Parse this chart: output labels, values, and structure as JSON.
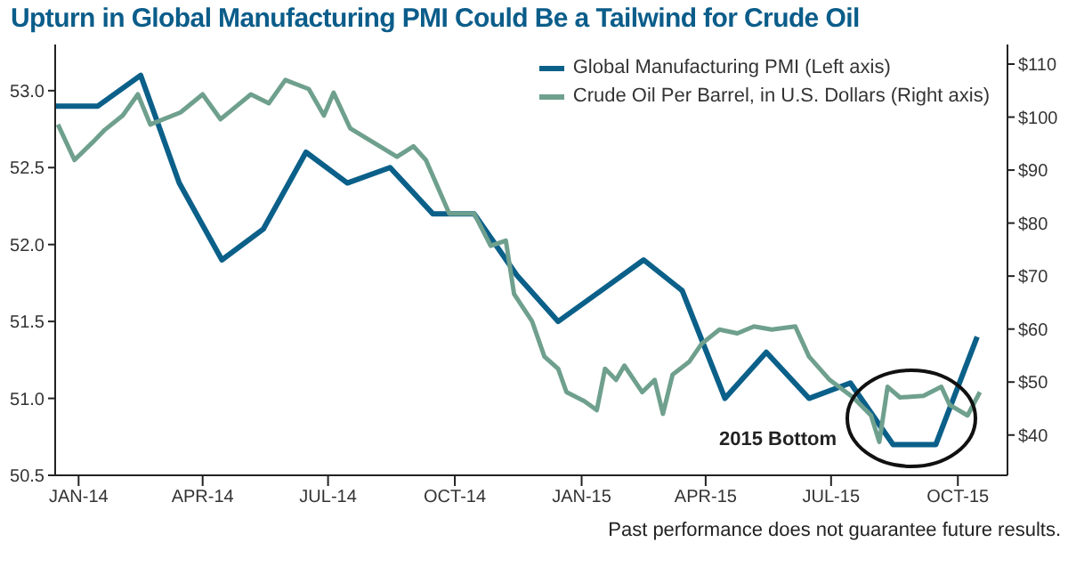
{
  "chart_data": {
    "type": "line",
    "title": "Upturn in Global Manufacturing PMI Could Be a Tailwind for Crude Oil",
    "series": [
      {
        "name": "Global Manufacturing PMI (Left axis)",
        "color": "#0b6089",
        "x": [
          "2013-12-15",
          "2014-01-15",
          "2014-02-15",
          "2014-03-15",
          "2014-04-15",
          "2014-05-15",
          "2014-06-15",
          "2014-07-15",
          "2014-08-15",
          "2014-09-15",
          "2014-10-15",
          "2014-11-15",
          "2014-12-15",
          "2015-01-15",
          "2015-02-15",
          "2015-03-15",
          "2015-04-15",
          "2015-05-15",
          "2015-06-15",
          "2015-07-15",
          "2015-08-15",
          "2015-09-15",
          "2015-10-15"
        ],
        "values": [
          52.9,
          52.9,
          53.1,
          52.4,
          51.9,
          52.1,
          52.6,
          52.4,
          52.5,
          52.2,
          52.2,
          51.8,
          51.5,
          51.7,
          51.9,
          51.7,
          51.0,
          51.3,
          51.0,
          51.1,
          50.7,
          50.7,
          51.4
        ]
      },
      {
        "name": "Crude Oil Per Barrel, in U.S. Dollars (Right axis)",
        "color": "#6fa08e",
        "axis": "y2",
        "x": [
          "2013-12-17",
          "2013-12-29",
          "2014-01-11",
          "2014-01-20",
          "2014-02-02",
          "2014-02-13",
          "2014-02-22",
          "2014-03-16",
          "2014-04-01",
          "2014-04-14",
          "2014-05-06",
          "2014-05-19",
          "2014-05-31",
          "2014-06-17",
          "2014-06-28",
          "2014-07-05",
          "2014-07-17",
          "2014-08-03",
          "2014-08-20",
          "2014-09-01",
          "2014-09-10",
          "2014-09-27",
          "2014-10-15",
          "2014-10-27",
          "2014-11-07",
          "2014-11-13",
          "2014-11-26",
          "2014-12-05",
          "2014-12-15",
          "2014-12-21",
          "2015-01-03",
          "2015-01-12",
          "2015-01-18",
          "2015-01-26",
          "2015-02-01",
          "2015-02-14",
          "2015-02-23",
          "2015-03-01",
          "2015-03-08",
          "2015-03-20",
          "2015-03-29",
          "2015-04-11",
          "2015-04-24",
          "2015-05-06",
          "2015-05-19",
          "2015-06-05",
          "2015-06-15",
          "2015-06-30",
          "2015-07-17",
          "2015-07-30",
          "2015-08-05",
          "2015-08-11",
          "2015-08-20",
          "2015-09-06",
          "2015-09-19",
          "2015-09-25",
          "2015-10-08",
          "2015-10-17"
        ],
        "values": [
          98.6,
          91.9,
          95.2,
          97.6,
          100.3,
          104.3,
          98.6,
          100.9,
          104.3,
          99.6,
          104.3,
          102.6,
          107,
          105.3,
          100.3,
          104.6,
          97.9,
          95.2,
          92.5,
          94.5,
          91.9,
          81.8,
          81.8,
          75.7,
          76.7,
          66.6,
          61.5,
          54.8,
          52.5,
          48.1,
          46.4,
          44.7,
          52.5,
          50.4,
          53.1,
          48.1,
          50.4,
          44,
          51.4,
          53.8,
          57.2,
          59.9,
          59.2,
          60.5,
          59.9,
          60.5,
          54.8,
          50.4,
          47.1,
          43.7,
          38.7,
          49.1,
          47.1,
          47.4,
          49.1,
          45.7,
          43.7,
          48.1
        ]
      }
    ],
    "xlim": [
      "2013-12-15",
      "2015-11-06"
    ],
    "xticks": [
      {
        "value": "2014-01-01",
        "label": "JAN-14"
      },
      {
        "value": "2014-04-01",
        "label": "APR-14"
      },
      {
        "value": "2014-07-01",
        "label": "JUL-14"
      },
      {
        "value": "2014-10-01",
        "label": "OCT-14"
      },
      {
        "value": "2015-01-01",
        "label": "JAN-15"
      },
      {
        "value": "2015-04-01",
        "label": "APR-15"
      },
      {
        "value": "2015-07-01",
        "label": "JUL-15"
      },
      {
        "value": "2015-10-01",
        "label": "OCT-15"
      }
    ],
    "ylim": [
      50.5,
      53.3
    ],
    "yticks": [
      50.5,
      {
        "value": 51,
        "label": "51.0"
      },
      51.5,
      {
        "value": 52,
        "label": "52.0"
      },
      52.5,
      {
        "value": 53,
        "label": "53.0"
      }
    ],
    "y2lim": [
      32.4,
      113.7
    ],
    "y2ticks": [
      {
        "value": 40,
        "label": "$40"
      },
      {
        "value": 50,
        "label": "$50"
      },
      {
        "value": 60,
        "label": "$60"
      },
      {
        "value": 70,
        "label": "$70"
      },
      {
        "value": 80,
        "label": "$80"
      },
      {
        "value": 90,
        "label": "$90"
      },
      {
        "value": 100,
        "label": "$100"
      },
      {
        "value": 110,
        "label": "$110"
      }
    ],
    "annotations": [
      "2015 Bottom",
      "Past performance does not guarantee future results."
    ],
    "legend": "top right",
    "grid": false,
    "marker": "none",
    "line_style": "solid"
  }
}
